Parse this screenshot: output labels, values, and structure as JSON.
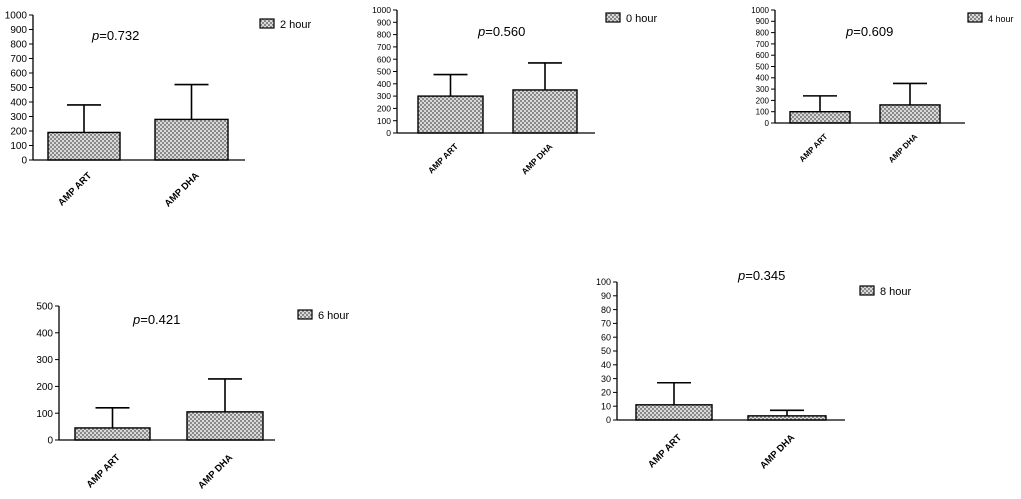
{
  "chart_data": [
    {
      "type": "bar",
      "panel": "2 hour",
      "legend": "2 hour",
      "annotation": {
        "prefix": "p",
        "value": "=0.732"
      },
      "categories": [
        "AMP ART",
        "AMP DHA"
      ],
      "values": [
        190,
        280
      ],
      "error_upper": [
        380,
        520
      ],
      "ylim": [
        0,
        1000
      ],
      "yticks": [
        0,
        100,
        200,
        300,
        400,
        500,
        600,
        700,
        800,
        900,
        1000
      ],
      "grid": false
    },
    {
      "type": "bar",
      "panel": "0 hour",
      "legend": "0 hour",
      "annotation": {
        "prefix": "p",
        "value": "=0.560"
      },
      "categories": [
        "AMP ART",
        "AMP DHA"
      ],
      "values": [
        300,
        350
      ],
      "error_upper": [
        475,
        570
      ],
      "ylim": [
        0,
        1000
      ],
      "yticks": [
        0,
        100,
        200,
        300,
        400,
        500,
        600,
        700,
        800,
        900,
        1000
      ],
      "grid": false
    },
    {
      "type": "bar",
      "panel": "4 hour",
      "legend": "4 hour",
      "annotation": {
        "prefix": "p",
        "value": "=0.609"
      },
      "categories": [
        "AMP ART",
        "AMP DHA"
      ],
      "values": [
        100,
        160
      ],
      "error_upper": [
        240,
        350
      ],
      "ylim": [
        0,
        1000
      ],
      "yticks": [
        0,
        100,
        200,
        300,
        400,
        500,
        600,
        700,
        800,
        900,
        1000
      ],
      "grid": false
    },
    {
      "type": "bar",
      "panel": "6 hour",
      "legend": "6 hour",
      "annotation": {
        "prefix": "p",
        "value": "=0.421"
      },
      "categories": [
        "AMP ART",
        "AMP DHA"
      ],
      "values": [
        45,
        105
      ],
      "error_upper": [
        120,
        228
      ],
      "ylim": [
        0,
        500
      ],
      "yticks": [
        0,
        100,
        200,
        300,
        400,
        500
      ],
      "grid": false
    },
    {
      "type": "bar",
      "panel": "8 hour",
      "legend": "8 hour",
      "annotation": {
        "prefix": "p",
        "value": "=0.345"
      },
      "categories": [
        "AMP ART",
        "AMP DHA"
      ],
      "values": [
        11,
        3
      ],
      "error_upper": [
        27,
        7
      ],
      "ylim": [
        0,
        100
      ],
      "yticks": [
        0,
        10,
        20,
        30,
        40,
        50,
        60,
        70,
        80,
        90,
        100
      ],
      "grid": false
    }
  ]
}
